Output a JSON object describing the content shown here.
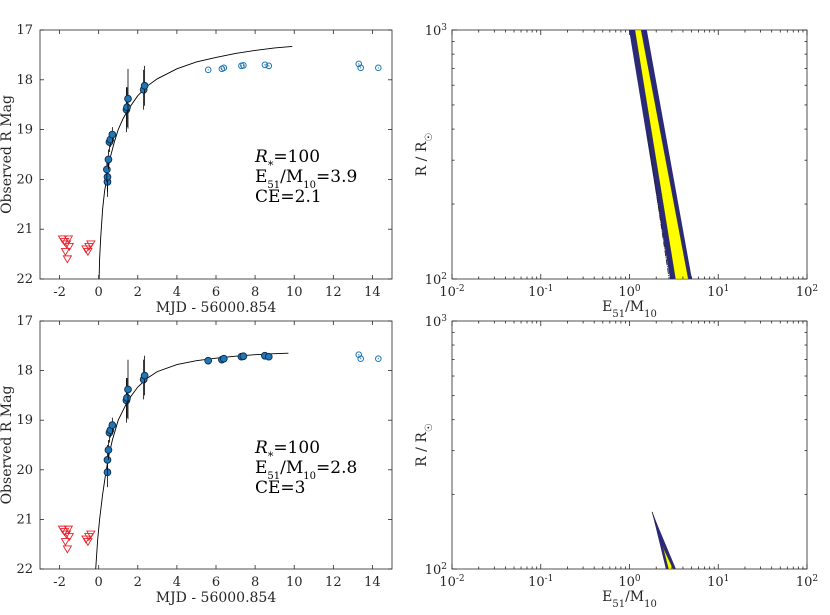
{
  "charts": [
    {
      "id": "top-left",
      "type": "scatter",
      "xlabel": "MJD - 56000.854",
      "ylabel": "Observed R Mag",
      "xlim": [
        -3,
        15
      ],
      "ylim": [
        22,
        17
      ],
      "xticks": [
        -2,
        0,
        2,
        4,
        6,
        8,
        10,
        12,
        14
      ],
      "xtick_labels": [
        "-2",
        "0",
        "2",
        "4",
        "6",
        "8",
        "10",
        "12",
        "14"
      ],
      "yticks": [
        17,
        18,
        19,
        20,
        21,
        22
      ],
      "ytick_labels": [
        "17",
        "18",
        "19",
        "20",
        "21",
        "22"
      ],
      "model_curve": {
        "points": [
          [
            0.02,
            22.0
          ],
          [
            0.05,
            21.6
          ],
          [
            0.1,
            21.2
          ],
          [
            0.2,
            20.6
          ],
          [
            0.3,
            20.25
          ],
          [
            0.4,
            20.0
          ],
          [
            0.5,
            19.75
          ],
          [
            0.6,
            19.55
          ],
          [
            0.8,
            19.25
          ],
          [
            1.0,
            19.0
          ],
          [
            1.25,
            18.78
          ],
          [
            1.5,
            18.6
          ],
          [
            2.0,
            18.32
          ],
          [
            2.5,
            18.12
          ],
          [
            3.0,
            17.98
          ],
          [
            4.0,
            17.78
          ],
          [
            5.0,
            17.64
          ],
          [
            6.0,
            17.55
          ],
          [
            7.0,
            17.47
          ],
          [
            8.0,
            17.41
          ],
          [
            9.0,
            17.36
          ],
          [
            9.9,
            17.33
          ]
        ]
      },
      "detections": [
        {
          "x": 0.45,
          "y": 20.05,
          "err": 0.3
        },
        {
          "x": 0.45,
          "y": 19.95,
          "err": 0.3
        },
        {
          "x": 0.42,
          "y": 19.8,
          "err": 0.25
        },
        {
          "x": 0.5,
          "y": 19.6,
          "err": 0.2
        },
        {
          "x": 0.55,
          "y": 19.25,
          "err": 0.2
        },
        {
          "x": 0.6,
          "y": 19.2,
          "err": 0.15
        },
        {
          "x": 0.7,
          "y": 19.1,
          "err": 0.15
        },
        {
          "x": 1.42,
          "y": 18.6,
          "err": 0.45
        },
        {
          "x": 1.45,
          "y": 18.55,
          "err": 0.4
        },
        {
          "x": 1.5,
          "y": 18.38,
          "err": 0.6
        },
        {
          "x": 2.3,
          "y": 18.2,
          "err": 0.4
        },
        {
          "x": 2.35,
          "y": 18.12,
          "err": 0.4
        }
      ],
      "late_points": [
        {
          "x": 5.6,
          "y": 17.8
        },
        {
          "x": 6.3,
          "y": 17.78
        },
        {
          "x": 6.4,
          "y": 17.76
        },
        {
          "x": 7.3,
          "y": 17.72
        },
        {
          "x": 7.4,
          "y": 17.71
        },
        {
          "x": 8.5,
          "y": 17.7
        },
        {
          "x": 8.7,
          "y": 17.72
        },
        {
          "x": 13.3,
          "y": 17.68
        },
        {
          "x": 13.4,
          "y": 17.76
        },
        {
          "x": 14.3,
          "y": 17.76
        }
      ],
      "upper_limits": [
        {
          "x": -1.85,
          "y": 21.2
        },
        {
          "x": -1.75,
          "y": 21.25
        },
        {
          "x": -1.7,
          "y": 21.45
        },
        {
          "x": -1.65,
          "y": 21.3
        },
        {
          "x": -1.6,
          "y": 21.6
        },
        {
          "x": -1.55,
          "y": 21.2
        },
        {
          "x": -1.5,
          "y": 21.35
        },
        {
          "x": -0.65,
          "y": 21.4
        },
        {
          "x": -0.55,
          "y": 21.45
        },
        {
          "x": -0.5,
          "y": 21.35
        },
        {
          "x": -0.4,
          "y": 21.3
        }
      ],
      "annotation": {
        "line1_main": "R",
        "line1_sub": "*",
        "line1_rest": "=100",
        "line2": "E51/M10=3.9",
        "line3": "CE=2.1"
      }
    },
    {
      "id": "top-right",
      "type": "contour",
      "xlabel": "E51/M10",
      "ylabel": "R / R☉",
      "xlim_log10": [
        -2,
        2
      ],
      "ylim_log10": [
        2,
        3
      ],
      "xtick_labels": [
        "10-2",
        "10-1",
        "100",
        "101",
        "102"
      ],
      "ytick_labels": [
        "102",
        "103"
      ],
      "outer_band": [
        [
          1.0,
          1000
        ],
        [
          1.55,
          1000
        ],
        [
          5.0,
          100
        ],
        [
          2.9,
          100
        ]
      ],
      "inner_band": [
        [
          1.15,
          1000
        ],
        [
          1.35,
          1000
        ],
        [
          4.6,
          100
        ],
        [
          3.3,
          100
        ]
      ],
      "line_segment": [
        [
          1.6,
          380
        ],
        [
          2.8,
          100
        ]
      ]
    },
    {
      "id": "bottom-left",
      "type": "scatter",
      "xlabel": "MJD - 56000.854",
      "ylabel": "Observed R Mag",
      "xlim": [
        -3,
        15
      ],
      "ylim": [
        22,
        17
      ],
      "xticks": [
        -2,
        0,
        2,
        4,
        6,
        8,
        10,
        12,
        14
      ],
      "xtick_labels": [
        "-2",
        "0",
        "2",
        "4",
        "6",
        "8",
        "10",
        "12",
        "14"
      ],
      "yticks": [
        17,
        18,
        19,
        20,
        21,
        22
      ],
      "ytick_labels": [
        "17",
        "18",
        "19",
        "20",
        "21",
        "22"
      ],
      "model_curve": {
        "points": [
          [
            -0.15,
            22.0
          ],
          [
            -0.05,
            21.4
          ],
          [
            0.05,
            21.0
          ],
          [
            0.2,
            20.5
          ],
          [
            0.35,
            20.1
          ],
          [
            0.5,
            19.75
          ],
          [
            0.7,
            19.4
          ],
          [
            1.0,
            19.0
          ],
          [
            1.5,
            18.6
          ],
          [
            2.0,
            18.33
          ],
          [
            2.5,
            18.15
          ],
          [
            3.0,
            18.02
          ],
          [
            4.0,
            17.88
          ],
          [
            5.0,
            17.8
          ],
          [
            6.0,
            17.75
          ],
          [
            7.0,
            17.71
          ],
          [
            8.0,
            17.68
          ],
          [
            9.0,
            17.66
          ],
          [
            9.7,
            17.65
          ]
        ]
      },
      "detections": [
        {
          "x": 0.45,
          "y": 20.05,
          "err": 0.3
        },
        {
          "x": 0.45,
          "y": 19.8,
          "err": 0.3
        },
        {
          "x": 0.5,
          "y": 19.6,
          "err": 0.2
        },
        {
          "x": 0.55,
          "y": 19.25,
          "err": 0.2
        },
        {
          "x": 0.6,
          "y": 19.2,
          "err": 0.15
        },
        {
          "x": 0.7,
          "y": 19.1,
          "err": 0.15
        },
        {
          "x": 1.42,
          "y": 18.6,
          "err": 0.45
        },
        {
          "x": 1.45,
          "y": 18.55,
          "err": 0.4
        },
        {
          "x": 1.5,
          "y": 18.38,
          "err": 0.6
        },
        {
          "x": 2.3,
          "y": 18.18,
          "err": 0.4
        },
        {
          "x": 2.35,
          "y": 18.1,
          "err": 0.4
        },
        {
          "x": 5.6,
          "y": 17.8,
          "err": 0.05
        },
        {
          "x": 6.3,
          "y": 17.78,
          "err": 0.05
        },
        {
          "x": 6.4,
          "y": 17.76,
          "err": 0.05
        },
        {
          "x": 7.3,
          "y": 17.72,
          "err": 0.05
        },
        {
          "x": 7.4,
          "y": 17.71,
          "err": 0.05
        },
        {
          "x": 8.5,
          "y": 17.7,
          "err": 0.05
        },
        {
          "x": 8.7,
          "y": 17.72,
          "err": 0.05
        }
      ],
      "late_points": [
        {
          "x": 13.3,
          "y": 17.68
        },
        {
          "x": 13.4,
          "y": 17.76
        },
        {
          "x": 14.3,
          "y": 17.76
        }
      ],
      "upper_limits": [
        {
          "x": -1.85,
          "y": 21.2
        },
        {
          "x": -1.75,
          "y": 21.25
        },
        {
          "x": -1.7,
          "y": 21.45
        },
        {
          "x": -1.65,
          "y": 21.3
        },
        {
          "x": -1.6,
          "y": 21.6
        },
        {
          "x": -1.55,
          "y": 21.2
        },
        {
          "x": -1.5,
          "y": 21.35
        },
        {
          "x": -0.65,
          "y": 21.4
        },
        {
          "x": -0.55,
          "y": 21.45
        },
        {
          "x": -0.5,
          "y": 21.35
        },
        {
          "x": -0.4,
          "y": 21.3
        }
      ],
      "annotation": {
        "line1_main": "R",
        "line1_sub": "*",
        "line1_rest": "=100",
        "line2": "E51/M10=2.8",
        "line3": "CE=3"
      }
    },
    {
      "id": "bottom-right",
      "type": "contour",
      "xlabel": "E51/M10",
      "ylabel": "R / R☉",
      "xlim_log10": [
        -2,
        2
      ],
      "ylim_log10": [
        2,
        3
      ],
      "xtick_labels": [
        "10-2",
        "10-1",
        "100",
        "101",
        "102"
      ],
      "ytick_labels": [
        "102",
        "103"
      ],
      "outer_band": [
        [
          1.85,
          165
        ],
        [
          2.05,
          150
        ],
        [
          3.3,
          100
        ],
        [
          2.6,
          100
        ]
      ],
      "inner_band": [
        [
          2.35,
          125
        ],
        [
          2.5,
          118
        ],
        [
          3.1,
          100
        ],
        [
          2.75,
          100
        ]
      ],
      "line_segment": [
        [
          1.8,
          170
        ],
        [
          2.0,
          150
        ]
      ]
    }
  ],
  "colors": {
    "detection_fill": "#1F77B4",
    "detection_edge": "#0B2A50",
    "late_open": "#1F77B4",
    "upper_limit": "#E8202A",
    "outer_band": "#2B2A7A",
    "inner_band": "#FFFF00",
    "curve": "#000000"
  }
}
